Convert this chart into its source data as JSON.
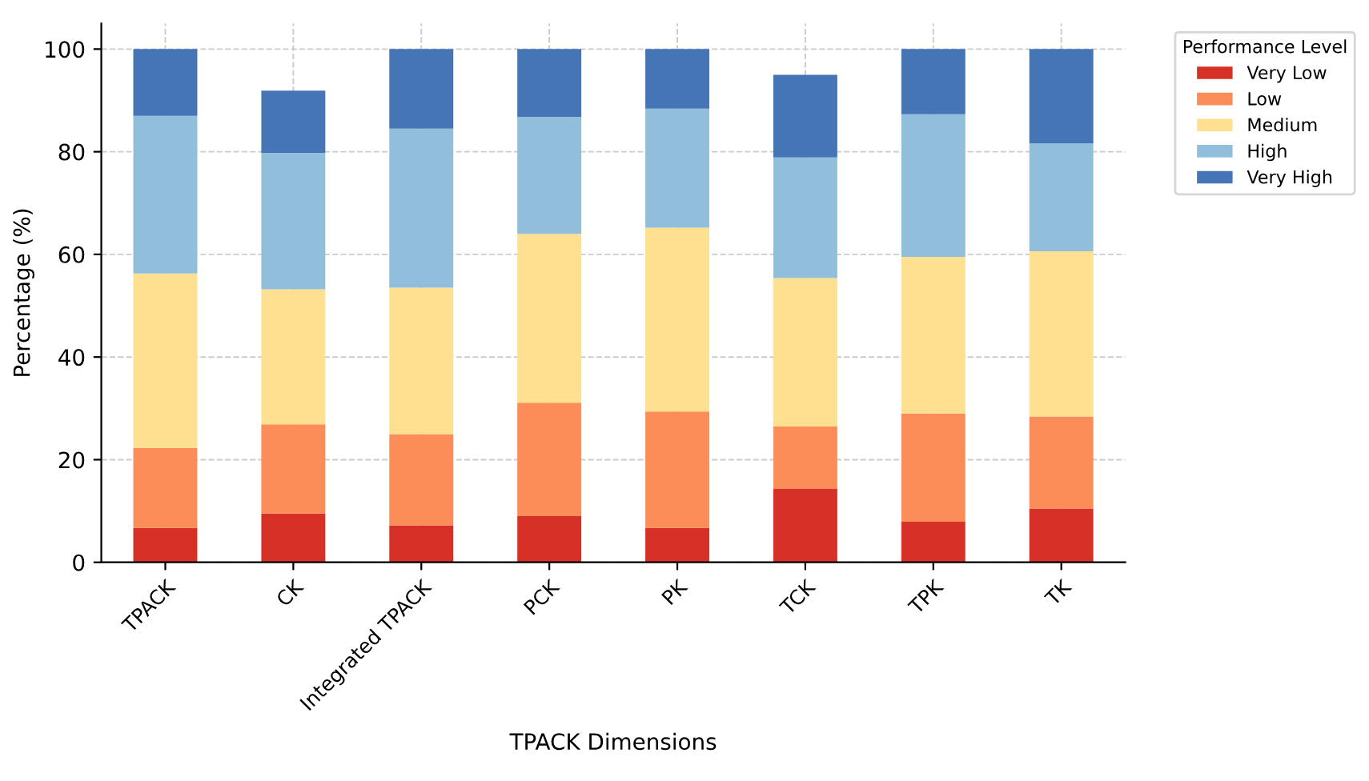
{
  "chart_data": {
    "type": "bar",
    "stacked": true,
    "xlabel": "TPACK Dimensions",
    "ylabel": "Percentage (%)",
    "legend_title": "Performance Level",
    "categories": [
      "TPACK",
      "CK",
      "Integrated TPACK",
      "PCK",
      "PK",
      "TCK",
      "TPK",
      "TK"
    ],
    "series": [
      {
        "name": "Very Low",
        "color": "#d73027",
        "values": [
          6.7,
          9.5,
          7.2,
          9.0,
          6.7,
          14.3,
          7.9,
          10.5
        ]
      },
      {
        "name": "Low",
        "color": "#fc8d59",
        "values": [
          15.6,
          17.4,
          17.8,
          22.1,
          22.7,
          12.2,
          21.1,
          17.9
        ]
      },
      {
        "name": "Medium",
        "color": "#fee090",
        "values": [
          34.0,
          26.3,
          28.5,
          32.9,
          35.8,
          28.9,
          30.5,
          32.2
        ]
      },
      {
        "name": "High",
        "color": "#91bfdb",
        "values": [
          30.7,
          26.6,
          31.0,
          22.8,
          23.2,
          23.5,
          27.8,
          21.0
        ]
      },
      {
        "name": "Very High",
        "color": "#4575b4",
        "values": [
          13.0,
          12.1,
          15.5,
          13.2,
          11.6,
          16.1,
          12.7,
          18.4
        ]
      }
    ],
    "ylim": [
      0,
      105
    ],
    "yticks": [
      0,
      20,
      40,
      60,
      80,
      100
    ],
    "grid": true,
    "legend": "top right"
  }
}
